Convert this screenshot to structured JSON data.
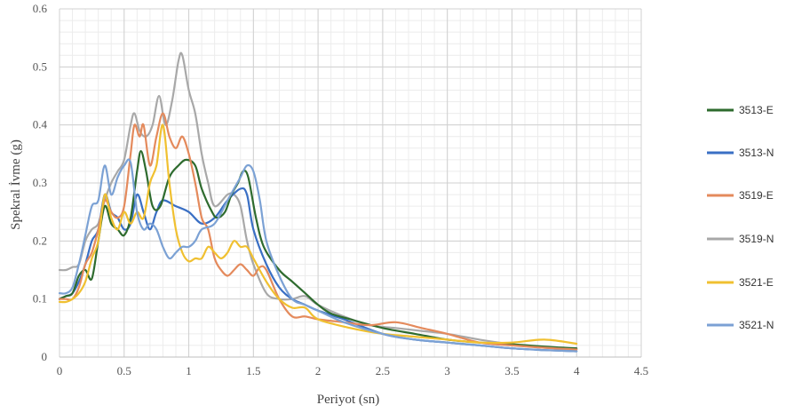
{
  "chart_data": {
    "type": "line",
    "xlabel": "Periyot (sn)",
    "ylabel": "Spekral İvme (g)",
    "xlim": [
      0,
      4.5
    ],
    "ylim": [
      0,
      0.6
    ],
    "x_ticks": [
      "0",
      "0.5",
      "1",
      "1.5",
      "2",
      "2.5",
      "3",
      "3.5",
      "4",
      "4.5"
    ],
    "y_ticks": [
      "0",
      "0.1",
      "0.2",
      "0.3",
      "0.4",
      "0.5",
      "0.6"
    ],
    "grid": true,
    "legend_position": "right",
    "series": [
      {
        "name": "3513-E",
        "color": "#2e6b2e",
        "points": [
          [
            0,
            0.1
          ],
          [
            0.05,
            0.105
          ],
          [
            0.1,
            0.11
          ],
          [
            0.15,
            0.14
          ],
          [
            0.2,
            0.15
          ],
          [
            0.25,
            0.135
          ],
          [
            0.3,
            0.2
          ],
          [
            0.35,
            0.26
          ],
          [
            0.4,
            0.23
          ],
          [
            0.45,
            0.22
          ],
          [
            0.5,
            0.21
          ],
          [
            0.55,
            0.24
          ],
          [
            0.6,
            0.32
          ],
          [
            0.63,
            0.355
          ],
          [
            0.67,
            0.32
          ],
          [
            0.72,
            0.26
          ],
          [
            0.78,
            0.26
          ],
          [
            0.85,
            0.31
          ],
          [
            0.92,
            0.33
          ],
          [
            0.98,
            0.34
          ],
          [
            1.05,
            0.33
          ],
          [
            1.1,
            0.29
          ],
          [
            1.18,
            0.25
          ],
          [
            1.22,
            0.24
          ],
          [
            1.28,
            0.25
          ],
          [
            1.33,
            0.28
          ],
          [
            1.38,
            0.3
          ],
          [
            1.42,
            0.32
          ],
          [
            1.46,
            0.31
          ],
          [
            1.52,
            0.24
          ],
          [
            1.58,
            0.19
          ],
          [
            1.7,
            0.15
          ],
          [
            1.8,
            0.13
          ],
          [
            1.9,
            0.11
          ],
          [
            2.0,
            0.09
          ],
          [
            2.1,
            0.075
          ],
          [
            2.25,
            0.065
          ],
          [
            2.5,
            0.05
          ],
          [
            2.75,
            0.04
          ],
          [
            3.0,
            0.03
          ],
          [
            3.25,
            0.025
          ],
          [
            3.5,
            0.022
          ],
          [
            3.75,
            0.018
          ],
          [
            4.0,
            0.015
          ]
        ]
      },
      {
        "name": "3513-N",
        "color": "#3a6fc4",
        "points": [
          [
            0,
            0.1
          ],
          [
            0.05,
            0.105
          ],
          [
            0.1,
            0.11
          ],
          [
            0.15,
            0.13
          ],
          [
            0.2,
            0.16
          ],
          [
            0.25,
            0.2
          ],
          [
            0.3,
            0.22
          ],
          [
            0.35,
            0.28
          ],
          [
            0.4,
            0.25
          ],
          [
            0.45,
            0.24
          ],
          [
            0.5,
            0.22
          ],
          [
            0.55,
            0.23
          ],
          [
            0.6,
            0.28
          ],
          [
            0.65,
            0.25
          ],
          [
            0.7,
            0.22
          ],
          [
            0.75,
            0.25
          ],
          [
            0.8,
            0.27
          ],
          [
            0.9,
            0.26
          ],
          [
            1.0,
            0.25
          ],
          [
            1.1,
            0.23
          ],
          [
            1.2,
            0.24
          ],
          [
            1.3,
            0.27
          ],
          [
            1.4,
            0.29
          ],
          [
            1.45,
            0.28
          ],
          [
            1.5,
            0.22
          ],
          [
            1.6,
            0.16
          ],
          [
            1.7,
            0.12
          ],
          [
            1.8,
            0.1
          ],
          [
            1.9,
            0.09
          ],
          [
            2.0,
            0.08
          ],
          [
            2.2,
            0.065
          ],
          [
            2.5,
            0.04
          ],
          [
            2.75,
            0.03
          ],
          [
            3.0,
            0.025
          ],
          [
            3.25,
            0.02
          ],
          [
            3.5,
            0.015
          ],
          [
            3.75,
            0.012
          ],
          [
            4.0,
            0.01
          ]
        ]
      },
      {
        "name": "3519-E",
        "color": "#e48a5c",
        "points": [
          [
            0,
            0.1
          ],
          [
            0.05,
            0.1
          ],
          [
            0.1,
            0.1
          ],
          [
            0.15,
            0.12
          ],
          [
            0.2,
            0.16
          ],
          [
            0.25,
            0.18
          ],
          [
            0.3,
            0.22
          ],
          [
            0.35,
            0.27
          ],
          [
            0.4,
            0.25
          ],
          [
            0.45,
            0.24
          ],
          [
            0.5,
            0.26
          ],
          [
            0.55,
            0.35
          ],
          [
            0.58,
            0.4
          ],
          [
            0.62,
            0.38
          ],
          [
            0.65,
            0.4
          ],
          [
            0.7,
            0.33
          ],
          [
            0.75,
            0.38
          ],
          [
            0.8,
            0.42
          ],
          [
            0.85,
            0.38
          ],
          [
            0.9,
            0.36
          ],
          [
            0.95,
            0.38
          ],
          [
            1.0,
            0.35
          ],
          [
            1.05,
            0.3
          ],
          [
            1.1,
            0.24
          ],
          [
            1.15,
            0.22
          ],
          [
            1.2,
            0.17
          ],
          [
            1.25,
            0.15
          ],
          [
            1.3,
            0.14
          ],
          [
            1.35,
            0.15
          ],
          [
            1.4,
            0.16
          ],
          [
            1.45,
            0.15
          ],
          [
            1.5,
            0.14
          ],
          [
            1.55,
            0.155
          ],
          [
            1.6,
            0.15
          ],
          [
            1.7,
            0.1
          ],
          [
            1.8,
            0.07
          ],
          [
            1.9,
            0.07
          ],
          [
            2.0,
            0.065
          ],
          [
            2.2,
            0.06
          ],
          [
            2.4,
            0.055
          ],
          [
            2.6,
            0.06
          ],
          [
            2.8,
            0.05
          ],
          [
            3.0,
            0.04
          ],
          [
            3.25,
            0.025
          ],
          [
            3.5,
            0.02
          ],
          [
            3.75,
            0.016
          ],
          [
            4.0,
            0.013
          ]
        ]
      },
      {
        "name": "3519-N",
        "color": "#a8a8a8",
        "points": [
          [
            0,
            0.15
          ],
          [
            0.05,
            0.15
          ],
          [
            0.1,
            0.155
          ],
          [
            0.15,
            0.16
          ],
          [
            0.2,
            0.2
          ],
          [
            0.25,
            0.22
          ],
          [
            0.3,
            0.23
          ],
          [
            0.35,
            0.27
          ],
          [
            0.4,
            0.3
          ],
          [
            0.45,
            0.32
          ],
          [
            0.5,
            0.34
          ],
          [
            0.55,
            0.4
          ],
          [
            0.58,
            0.42
          ],
          [
            0.62,
            0.39
          ],
          [
            0.67,
            0.38
          ],
          [
            0.72,
            0.4
          ],
          [
            0.77,
            0.45
          ],
          [
            0.82,
            0.4
          ],
          [
            0.87,
            0.44
          ],
          [
            0.92,
            0.51
          ],
          [
            0.95,
            0.52
          ],
          [
            1.0,
            0.46
          ],
          [
            1.05,
            0.42
          ],
          [
            1.1,
            0.35
          ],
          [
            1.15,
            0.3
          ],
          [
            1.2,
            0.26
          ],
          [
            1.3,
            0.28
          ],
          [
            1.35,
            0.28
          ],
          [
            1.4,
            0.26
          ],
          [
            1.45,
            0.2
          ],
          [
            1.5,
            0.16
          ],
          [
            1.6,
            0.11
          ],
          [
            1.7,
            0.1
          ],
          [
            1.8,
            0.1
          ],
          [
            1.9,
            0.105
          ],
          [
            2.0,
            0.09
          ],
          [
            2.2,
            0.07
          ],
          [
            2.4,
            0.055
          ],
          [
            2.6,
            0.05
          ],
          [
            2.8,
            0.045
          ],
          [
            3.0,
            0.04
          ],
          [
            3.25,
            0.03
          ],
          [
            3.5,
            0.022
          ],
          [
            3.75,
            0.016
          ],
          [
            4.0,
            0.013
          ]
        ]
      },
      {
        "name": "3521-E",
        "color": "#f0c030",
        "points": [
          [
            0,
            0.095
          ],
          [
            0.05,
            0.095
          ],
          [
            0.1,
            0.1
          ],
          [
            0.15,
            0.11
          ],
          [
            0.2,
            0.13
          ],
          [
            0.25,
            0.17
          ],
          [
            0.3,
            0.2
          ],
          [
            0.35,
            0.28
          ],
          [
            0.4,
            0.24
          ],
          [
            0.45,
            0.22
          ],
          [
            0.5,
            0.25
          ],
          [
            0.55,
            0.23
          ],
          [
            0.6,
            0.25
          ],
          [
            0.65,
            0.24
          ],
          [
            0.7,
            0.3
          ],
          [
            0.75,
            0.33
          ],
          [
            0.8,
            0.4
          ],
          [
            0.85,
            0.3
          ],
          [
            0.9,
            0.22
          ],
          [
            0.95,
            0.18
          ],
          [
            1.0,
            0.165
          ],
          [
            1.05,
            0.17
          ],
          [
            1.1,
            0.17
          ],
          [
            1.15,
            0.19
          ],
          [
            1.2,
            0.18
          ],
          [
            1.25,
            0.17
          ],
          [
            1.3,
            0.18
          ],
          [
            1.35,
            0.2
          ],
          [
            1.4,
            0.19
          ],
          [
            1.45,
            0.19
          ],
          [
            1.5,
            0.17
          ],
          [
            1.6,
            0.13
          ],
          [
            1.7,
            0.1
          ],
          [
            1.8,
            0.085
          ],
          [
            1.9,
            0.085
          ],
          [
            2.0,
            0.065
          ],
          [
            2.25,
            0.05
          ],
          [
            2.5,
            0.04
          ],
          [
            2.75,
            0.035
          ],
          [
            3.0,
            0.03
          ],
          [
            3.25,
            0.025
          ],
          [
            3.5,
            0.025
          ],
          [
            3.75,
            0.03
          ],
          [
            4.0,
            0.023
          ]
        ]
      },
      {
        "name": "3521-N",
        "color": "#7ba1d4",
        "points": [
          [
            0,
            0.11
          ],
          [
            0.05,
            0.11
          ],
          [
            0.1,
            0.12
          ],
          [
            0.15,
            0.16
          ],
          [
            0.2,
            0.21
          ],
          [
            0.25,
            0.26
          ],
          [
            0.3,
            0.27
          ],
          [
            0.35,
            0.33
          ],
          [
            0.4,
            0.28
          ],
          [
            0.45,
            0.31
          ],
          [
            0.5,
            0.33
          ],
          [
            0.55,
            0.335
          ],
          [
            0.6,
            0.25
          ],
          [
            0.65,
            0.22
          ],
          [
            0.7,
            0.23
          ],
          [
            0.75,
            0.22
          ],
          [
            0.8,
            0.19
          ],
          [
            0.85,
            0.17
          ],
          [
            0.9,
            0.18
          ],
          [
            0.95,
            0.19
          ],
          [
            1.0,
            0.19
          ],
          [
            1.05,
            0.2
          ],
          [
            1.1,
            0.22
          ],
          [
            1.2,
            0.23
          ],
          [
            1.3,
            0.27
          ],
          [
            1.35,
            0.29
          ],
          [
            1.4,
            0.31
          ],
          [
            1.45,
            0.33
          ],
          [
            1.5,
            0.32
          ],
          [
            1.55,
            0.27
          ],
          [
            1.6,
            0.2
          ],
          [
            1.7,
            0.14
          ],
          [
            1.8,
            0.1
          ],
          [
            1.9,
            0.09
          ],
          [
            2.0,
            0.08
          ],
          [
            2.2,
            0.06
          ],
          [
            2.5,
            0.04
          ],
          [
            2.75,
            0.03
          ],
          [
            3.0,
            0.025
          ],
          [
            3.25,
            0.02
          ],
          [
            3.5,
            0.015
          ],
          [
            3.75,
            0.012
          ],
          [
            4.0,
            0.01
          ]
        ]
      }
    ]
  }
}
